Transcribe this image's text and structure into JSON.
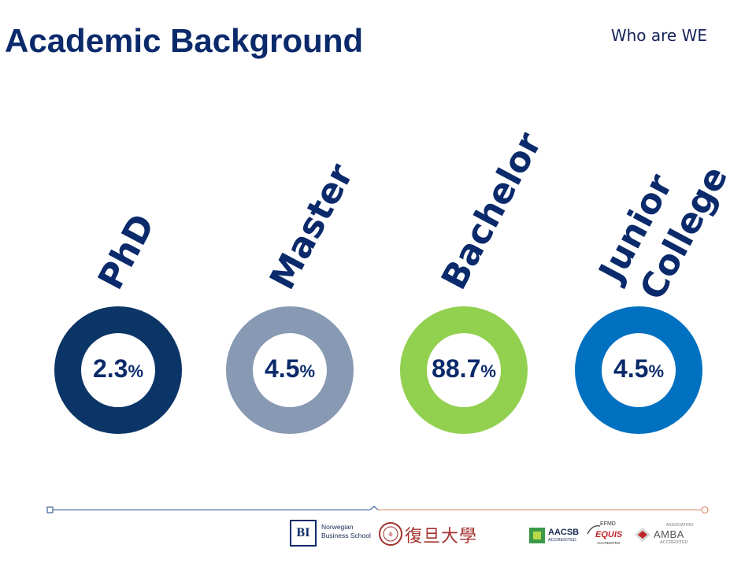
{
  "header": {
    "title": "Academic Background",
    "section_tag": "Who are WE"
  },
  "categories": [
    {
      "label": "PhD",
      "value": "2.3",
      "unit": "%",
      "color": "#0b3567"
    },
    {
      "label": "Master",
      "value": "4.5",
      "unit": "%",
      "color": "#8799b3"
    },
    {
      "label": "Bachelor",
      "value": "88.7",
      "unit": "%",
      "color": "#92d050"
    },
    {
      "label_line1": "Junior",
      "label_line2": "College",
      "value": "4.5",
      "unit": "%",
      "color": "#0070c0"
    }
  ],
  "footer": {
    "bi_mark": "BI",
    "bi_name": "Norwegian\nBusiness School",
    "fudan_name": "復旦大學",
    "aacsb": "AACSB",
    "aacsb_sub": "ACCREDITED",
    "efmd": "EFMD",
    "equis": "EQUIS",
    "equis_sub": "ACCREDITED",
    "amba": "AMBA",
    "amba_top": "ASSOCIATION",
    "amba_sub": "ACCREDITED"
  },
  "colors": {
    "title": "#0b2a6b",
    "footer_line_left": "#4a6fa0",
    "footer_line_right": "#e0957a"
  }
}
